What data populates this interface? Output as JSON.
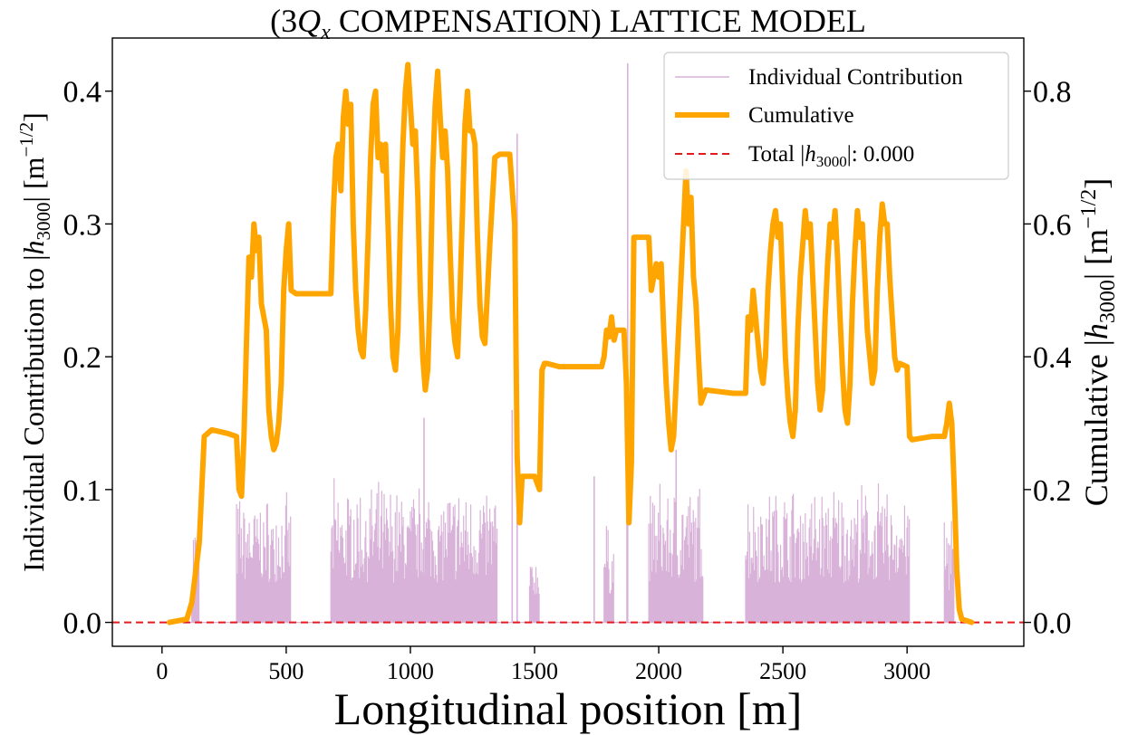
{
  "chart_data": {
    "type": "line",
    "title": "(3Qx COMPENSATION) LATTICE MODEL",
    "title_parts": {
      "open": "(3",
      "q": "Q",
      "sub": "x",
      "rest": " COMPENSATION) LATTICE MODEL"
    },
    "xlabel": "Longitudinal position [m]",
    "ylabel_left": "Individual Contribution to |h3000| [m−1/2]",
    "ylabel_right": "Cumulative |h3000| [m−1/2]",
    "ylabel_left_parts": {
      "prefix": "Individual Contribution to |",
      "h": "h",
      "sub": "3000",
      "unit": "| [m",
      "exp": "−1/2",
      "close": "]"
    },
    "ylabel_right_parts": {
      "prefix": "Cumulative |",
      "h": "h",
      "sub": "3000",
      "unit": "| [m",
      "exp": "−1/2",
      "close": "]"
    },
    "xlim": [
      -200,
      3470
    ],
    "ylim_left": [
      -0.018,
      0.44
    ],
    "ylim_right": [
      -0.036,
      0.88
    ],
    "x_ticks": [
      0,
      500,
      1000,
      1500,
      2000,
      2500,
      3000
    ],
    "x_tick_labels": [
      "0",
      "500",
      "1000",
      "1500",
      "2000",
      "2500",
      "3000"
    ],
    "y_left_ticks": [
      0.0,
      0.1,
      0.2,
      0.3,
      0.4
    ],
    "y_left_tick_labels": [
      "0.0",
      "0.1",
      "0.2",
      "0.3",
      "0.4"
    ],
    "y_right_ticks": [
      0.0,
      0.2,
      0.4,
      0.6,
      0.8
    ],
    "y_right_tick_labels": [
      "0.0",
      "0.2",
      "0.4",
      "0.6",
      "0.8"
    ],
    "grid": false,
    "legend_position": "top-right",
    "legend": [
      {
        "label": "Individual Contribution",
        "color": "#d8b2d8",
        "style": "solid-thin"
      },
      {
        "label": "Cumulative",
        "color": "#ffa500",
        "style": "solid-thick"
      },
      {
        "label": "Total |h3000|: 0.000",
        "color": "#e41a1c",
        "style": "dashed",
        "parts": {
          "prefix": "Total |",
          "h": "h",
          "sub": "3000",
          "suffix": "|: 0.000"
        }
      }
    ],
    "series": [
      {
        "name": "Individual Contribution",
        "axis": "left",
        "color": "#d8b2d8",
        "regions": [
          {
            "start": 120,
            "end": 150,
            "min": 0.02,
            "max": 0.093
          },
          {
            "start": 300,
            "end": 520,
            "min": 0.03,
            "max": 0.1
          },
          {
            "start": 680,
            "end": 1350,
            "min": 0.03,
            "max": 0.11
          },
          {
            "start": 1480,
            "end": 1520,
            "min": 0.02,
            "max": 0.05
          },
          {
            "start": 1780,
            "end": 1820,
            "min": 0.02,
            "max": 0.08
          },
          {
            "start": 1960,
            "end": 2180,
            "min": 0.03,
            "max": 0.11
          },
          {
            "start": 2350,
            "end": 3010,
            "min": 0.03,
            "max": 0.11
          },
          {
            "start": 3150,
            "end": 3190,
            "min": 0.02,
            "max": 0.09
          }
        ],
        "spikes": [
          {
            "x": 1430,
            "y": 0.368
          },
          {
            "x": 1410,
            "y": 0.16
          },
          {
            "x": 1875,
            "y": 0.421
          },
          {
            "x": 1872,
            "y": 0.155
          },
          {
            "x": 1055,
            "y": 0.154
          },
          {
            "x": 1740,
            "y": 0.11
          },
          {
            "x": 2070,
            "y": 0.13
          }
        ]
      },
      {
        "name": "Cumulative",
        "axis": "right",
        "color": "#ffa500",
        "points": [
          [
            30,
            0.0
          ],
          [
            100,
            0.005
          ],
          [
            120,
            0.03
          ],
          [
            150,
            0.12
          ],
          [
            170,
            0.28
          ],
          [
            200,
            0.29
          ],
          [
            260,
            0.285
          ],
          [
            300,
            0.28
          ],
          [
            310,
            0.2
          ],
          [
            320,
            0.19
          ],
          [
            330,
            0.28
          ],
          [
            340,
            0.42
          ],
          [
            350,
            0.55
          ],
          [
            360,
            0.52
          ],
          [
            370,
            0.6
          ],
          [
            380,
            0.56
          ],
          [
            390,
            0.58
          ],
          [
            400,
            0.48
          ],
          [
            410,
            0.46
          ],
          [
            420,
            0.44
          ],
          [
            430,
            0.32
          ],
          [
            440,
            0.28
          ],
          [
            450,
            0.26
          ],
          [
            460,
            0.27
          ],
          [
            470,
            0.3
          ],
          [
            480,
            0.36
          ],
          [
            490,
            0.5
          ],
          [
            500,
            0.56
          ],
          [
            510,
            0.6
          ],
          [
            520,
            0.5
          ],
          [
            540,
            0.495
          ],
          [
            600,
            0.495
          ],
          [
            680,
            0.495
          ],
          [
            690,
            0.62
          ],
          [
            700,
            0.7
          ],
          [
            710,
            0.72
          ],
          [
            720,
            0.65
          ],
          [
            730,
            0.76
          ],
          [
            740,
            0.8
          ],
          [
            750,
            0.75
          ],
          [
            760,
            0.78
          ],
          [
            770,
            0.6
          ],
          [
            780,
            0.5
          ],
          [
            790,
            0.44
          ],
          [
            800,
            0.41
          ],
          [
            810,
            0.4
          ],
          [
            820,
            0.47
          ],
          [
            830,
            0.58
          ],
          [
            840,
            0.7
          ],
          [
            850,
            0.78
          ],
          [
            860,
            0.8
          ],
          [
            870,
            0.7
          ],
          [
            880,
            0.72
          ],
          [
            890,
            0.68
          ],
          [
            900,
            0.72
          ],
          [
            910,
            0.6
          ],
          [
            920,
            0.48
          ],
          [
            930,
            0.4
          ],
          [
            940,
            0.38
          ],
          [
            950,
            0.44
          ],
          [
            960,
            0.6
          ],
          [
            970,
            0.72
          ],
          [
            980,
            0.8
          ],
          [
            990,
            0.84
          ],
          [
            1000,
            0.78
          ],
          [
            1010,
            0.72
          ],
          [
            1020,
            0.74
          ],
          [
            1030,
            0.64
          ],
          [
            1040,
            0.5
          ],
          [
            1050,
            0.4
          ],
          [
            1060,
            0.35
          ],
          [
            1070,
            0.38
          ],
          [
            1080,
            0.5
          ],
          [
            1090,
            0.68
          ],
          [
            1100,
            0.78
          ],
          [
            1110,
            0.83
          ],
          [
            1120,
            0.76
          ],
          [
            1130,
            0.7
          ],
          [
            1140,
            0.74
          ],
          [
            1150,
            0.68
          ],
          [
            1160,
            0.56
          ],
          [
            1170,
            0.46
          ],
          [
            1180,
            0.42
          ],
          [
            1190,
            0.4
          ],
          [
            1200,
            0.5
          ],
          [
            1210,
            0.62
          ],
          [
            1220,
            0.75
          ],
          [
            1230,
            0.8
          ],
          [
            1240,
            0.74
          ],
          [
            1250,
            0.74
          ],
          [
            1260,
            0.72
          ],
          [
            1270,
            0.58
          ],
          [
            1280,
            0.48
          ],
          [
            1290,
            0.43
          ],
          [
            1300,
            0.42
          ],
          [
            1320,
            0.57
          ],
          [
            1340,
            0.7
          ],
          [
            1360,
            0.705
          ],
          [
            1400,
            0.705
          ],
          [
            1420,
            0.6
          ],
          [
            1430,
            0.25
          ],
          [
            1440,
            0.15
          ],
          [
            1450,
            0.22
          ],
          [
            1500,
            0.22
          ],
          [
            1520,
            0.2
          ],
          [
            1530,
            0.38
          ],
          [
            1540,
            0.39
          ],
          [
            1550,
            0.39
          ],
          [
            1600,
            0.385
          ],
          [
            1700,
            0.385
          ],
          [
            1770,
            0.385
          ],
          [
            1780,
            0.4
          ],
          [
            1790,
            0.44
          ],
          [
            1800,
            0.43
          ],
          [
            1810,
            0.46
          ],
          [
            1820,
            0.425
          ],
          [
            1830,
            0.44
          ],
          [
            1860,
            0.44
          ],
          [
            1870,
            0.36
          ],
          [
            1880,
            0.15
          ],
          [
            1890,
            0.24
          ],
          [
            1900,
            0.58
          ],
          [
            1960,
            0.58
          ],
          [
            1970,
            0.5
          ],
          [
            1980,
            0.52
          ],
          [
            1990,
            0.54
          ],
          [
            2000,
            0.52
          ],
          [
            2010,
            0.54
          ],
          [
            2020,
            0.44
          ],
          [
            2030,
            0.36
          ],
          [
            2040,
            0.3
          ],
          [
            2050,
            0.26
          ],
          [
            2060,
            0.28
          ],
          [
            2070,
            0.36
          ],
          [
            2080,
            0.44
          ],
          [
            2090,
            0.52
          ],
          [
            2100,
            0.6
          ],
          [
            2110,
            0.68
          ],
          [
            2120,
            0.6
          ],
          [
            2130,
            0.64
          ],
          [
            2140,
            0.52
          ],
          [
            2150,
            0.48
          ],
          [
            2160,
            0.4
          ],
          [
            2170,
            0.33
          ],
          [
            2180,
            0.34
          ],
          [
            2190,
            0.35
          ],
          [
            2300,
            0.345
          ],
          [
            2350,
            0.345
          ],
          [
            2360,
            0.46
          ],
          [
            2370,
            0.44
          ],
          [
            2380,
            0.5
          ],
          [
            2390,
            0.46
          ],
          [
            2400,
            0.42
          ],
          [
            2410,
            0.38
          ],
          [
            2420,
            0.36
          ],
          [
            2430,
            0.4
          ],
          [
            2440,
            0.5
          ],
          [
            2450,
            0.56
          ],
          [
            2460,
            0.6
          ],
          [
            2470,
            0.62
          ],
          [
            2480,
            0.58
          ],
          [
            2490,
            0.6
          ],
          [
            2500,
            0.5
          ],
          [
            2510,
            0.4
          ],
          [
            2520,
            0.34
          ],
          [
            2530,
            0.3
          ],
          [
            2540,
            0.28
          ],
          [
            2550,
            0.32
          ],
          [
            2560,
            0.44
          ],
          [
            2570,
            0.52
          ],
          [
            2580,
            0.57
          ],
          [
            2590,
            0.62
          ],
          [
            2600,
            0.58
          ],
          [
            2610,
            0.6
          ],
          [
            2620,
            0.52
          ],
          [
            2630,
            0.44
          ],
          [
            2640,
            0.36
          ],
          [
            2650,
            0.32
          ],
          [
            2660,
            0.35
          ],
          [
            2670,
            0.46
          ],
          [
            2680,
            0.54
          ],
          [
            2690,
            0.6
          ],
          [
            2700,
            0.58
          ],
          [
            2710,
            0.62
          ],
          [
            2720,
            0.55
          ],
          [
            2730,
            0.46
          ],
          [
            2740,
            0.38
          ],
          [
            2750,
            0.32
          ],
          [
            2760,
            0.3
          ],
          [
            2770,
            0.36
          ],
          [
            2780,
            0.48
          ],
          [
            2790,
            0.56
          ],
          [
            2800,
            0.62
          ],
          [
            2810,
            0.58
          ],
          [
            2820,
            0.6
          ],
          [
            2830,
            0.52
          ],
          [
            2840,
            0.44
          ],
          [
            2850,
            0.4
          ],
          [
            2860,
            0.36
          ],
          [
            2870,
            0.38
          ],
          [
            2880,
            0.5
          ],
          [
            2890,
            0.58
          ],
          [
            2900,
            0.63
          ],
          [
            2910,
            0.6
          ],
          [
            2920,
            0.6
          ],
          [
            2930,
            0.52
          ],
          [
            2940,
            0.46
          ],
          [
            2950,
            0.4
          ],
          [
            2960,
            0.38
          ],
          [
            2970,
            0.39
          ],
          [
            3000,
            0.385
          ],
          [
            3010,
            0.28
          ],
          [
            3020,
            0.275
          ],
          [
            3100,
            0.28
          ],
          [
            3150,
            0.28
          ],
          [
            3160,
            0.3
          ],
          [
            3170,
            0.33
          ],
          [
            3180,
            0.3
          ],
          [
            3190,
            0.2
          ],
          [
            3200,
            0.08
          ],
          [
            3210,
            0.02
          ],
          [
            3220,
            0.005
          ],
          [
            3260,
            0.0
          ]
        ]
      },
      {
        "name": "Total |h3000|: 0.000",
        "axis": "left",
        "color": "#e41a1c",
        "style": "dashed",
        "y": 0.0
      }
    ]
  }
}
